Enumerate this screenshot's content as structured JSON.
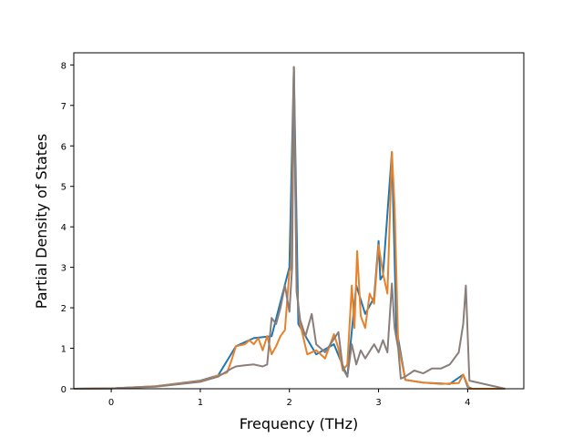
{
  "chart_data": {
    "type": "line",
    "xlabel": "Frequency (THz)",
    "ylabel": "Partial Density of States",
    "xlim": [
      -0.42,
      4.63
    ],
    "ylim": [
      0,
      8.3
    ],
    "x_ticks": [
      "0",
      "1",
      "2",
      "3",
      "4"
    ],
    "y_ticks": [
      "0",
      "1",
      "2",
      "3",
      "4",
      "5",
      "6",
      "7",
      "8"
    ],
    "grid": false,
    "legend": "none",
    "colors": {
      "orange": "#e8822a",
      "gray": "#8a7d7a",
      "blue": "#1f77b4"
    },
    "series": [
      {
        "color": "#1f77b4",
        "x": [
          -0.42,
          0,
          0.5,
          1.0,
          1.2,
          1.4,
          1.6,
          1.8,
          2.0,
          2.05,
          2.1,
          2.3,
          2.5,
          2.65,
          2.75,
          2.85,
          2.95,
          3.0,
          3.02,
          3.05,
          3.15,
          3.2,
          3.3,
          3.5,
          3.8,
          3.95,
          4.0,
          4.05,
          4.42
        ],
        "y": [
          0,
          0.01,
          0.06,
          0.2,
          0.33,
          1.05,
          1.25,
          1.3,
          3.0,
          7.95,
          1.6,
          0.85,
          1.1,
          0.3,
          2.55,
          1.85,
          2.25,
          3.65,
          2.7,
          2.8,
          5.85,
          1.5,
          0.22,
          0.15,
          0.12,
          0.35,
          0.05,
          0,
          0
        ]
      },
      {
        "color": "#e8822a",
        "x": [
          -0.42,
          0,
          0.5,
          1.0,
          1.1,
          1.2,
          1.3,
          1.35,
          1.4,
          1.5,
          1.55,
          1.6,
          1.65,
          1.7,
          1.75,
          1.8,
          1.85,
          1.9,
          1.95,
          2.0,
          2.02,
          2.05,
          2.08,
          2.12,
          2.2,
          2.3,
          2.4,
          2.5,
          2.55,
          2.6,
          2.65,
          2.7,
          2.73,
          2.76,
          2.8,
          2.85,
          2.9,
          2.95,
          3.0,
          3.05,
          3.1,
          3.15,
          3.18,
          3.22,
          3.3,
          3.5,
          3.7,
          3.9,
          3.95,
          4.0,
          4.02,
          4.42
        ],
        "y": [
          0,
          0.01,
          0.06,
          0.19,
          0.25,
          0.33,
          0.4,
          0.7,
          1.05,
          1.1,
          1.2,
          1.1,
          1.25,
          0.95,
          1.3,
          0.85,
          1.05,
          1.3,
          1.45,
          2.9,
          3.0,
          7.95,
          2.5,
          1.6,
          0.85,
          0.95,
          0.75,
          1.35,
          1.0,
          0.45,
          0.6,
          2.55,
          1.5,
          3.4,
          1.8,
          1.5,
          2.35,
          2.1,
          3.55,
          2.85,
          2.35,
          5.85,
          4.5,
          1.1,
          0.22,
          0.15,
          0.12,
          0.14,
          0.35,
          0.1,
          0,
          0
        ]
      },
      {
        "color": "#8a7d7a",
        "x": [
          -0.42,
          0,
          0.5,
          1.0,
          1.2,
          1.35,
          1.4,
          1.5,
          1.6,
          1.7,
          1.75,
          1.8,
          1.85,
          1.9,
          1.95,
          2.0,
          2.03,
          2.05,
          2.08,
          2.12,
          2.18,
          2.25,
          2.3,
          2.4,
          2.55,
          2.6,
          2.65,
          2.7,
          2.75,
          2.8,
          2.85,
          2.95,
          3.0,
          3.05,
          3.1,
          3.15,
          3.18,
          3.22,
          3.25,
          3.3,
          3.4,
          3.5,
          3.6,
          3.7,
          3.8,
          3.9,
          3.95,
          3.98,
          4.02,
          4.42
        ],
        "y": [
          0,
          0.01,
          0.05,
          0.17,
          0.3,
          0.5,
          0.55,
          0.58,
          0.6,
          0.55,
          0.6,
          1.75,
          1.6,
          2.0,
          2.55,
          1.9,
          3.0,
          7.95,
          2.4,
          1.7,
          1.3,
          1.85,
          1.1,
          0.9,
          1.4,
          0.5,
          0.3,
          1.1,
          0.6,
          0.95,
          0.75,
          1.1,
          0.9,
          1.2,
          0.9,
          2.6,
          1.5,
          1.0,
          0.25,
          0.3,
          0.45,
          0.38,
          0.5,
          0.5,
          0.6,
          0.9,
          1.6,
          2.55,
          0.2,
          0
        ]
      }
    ]
  }
}
